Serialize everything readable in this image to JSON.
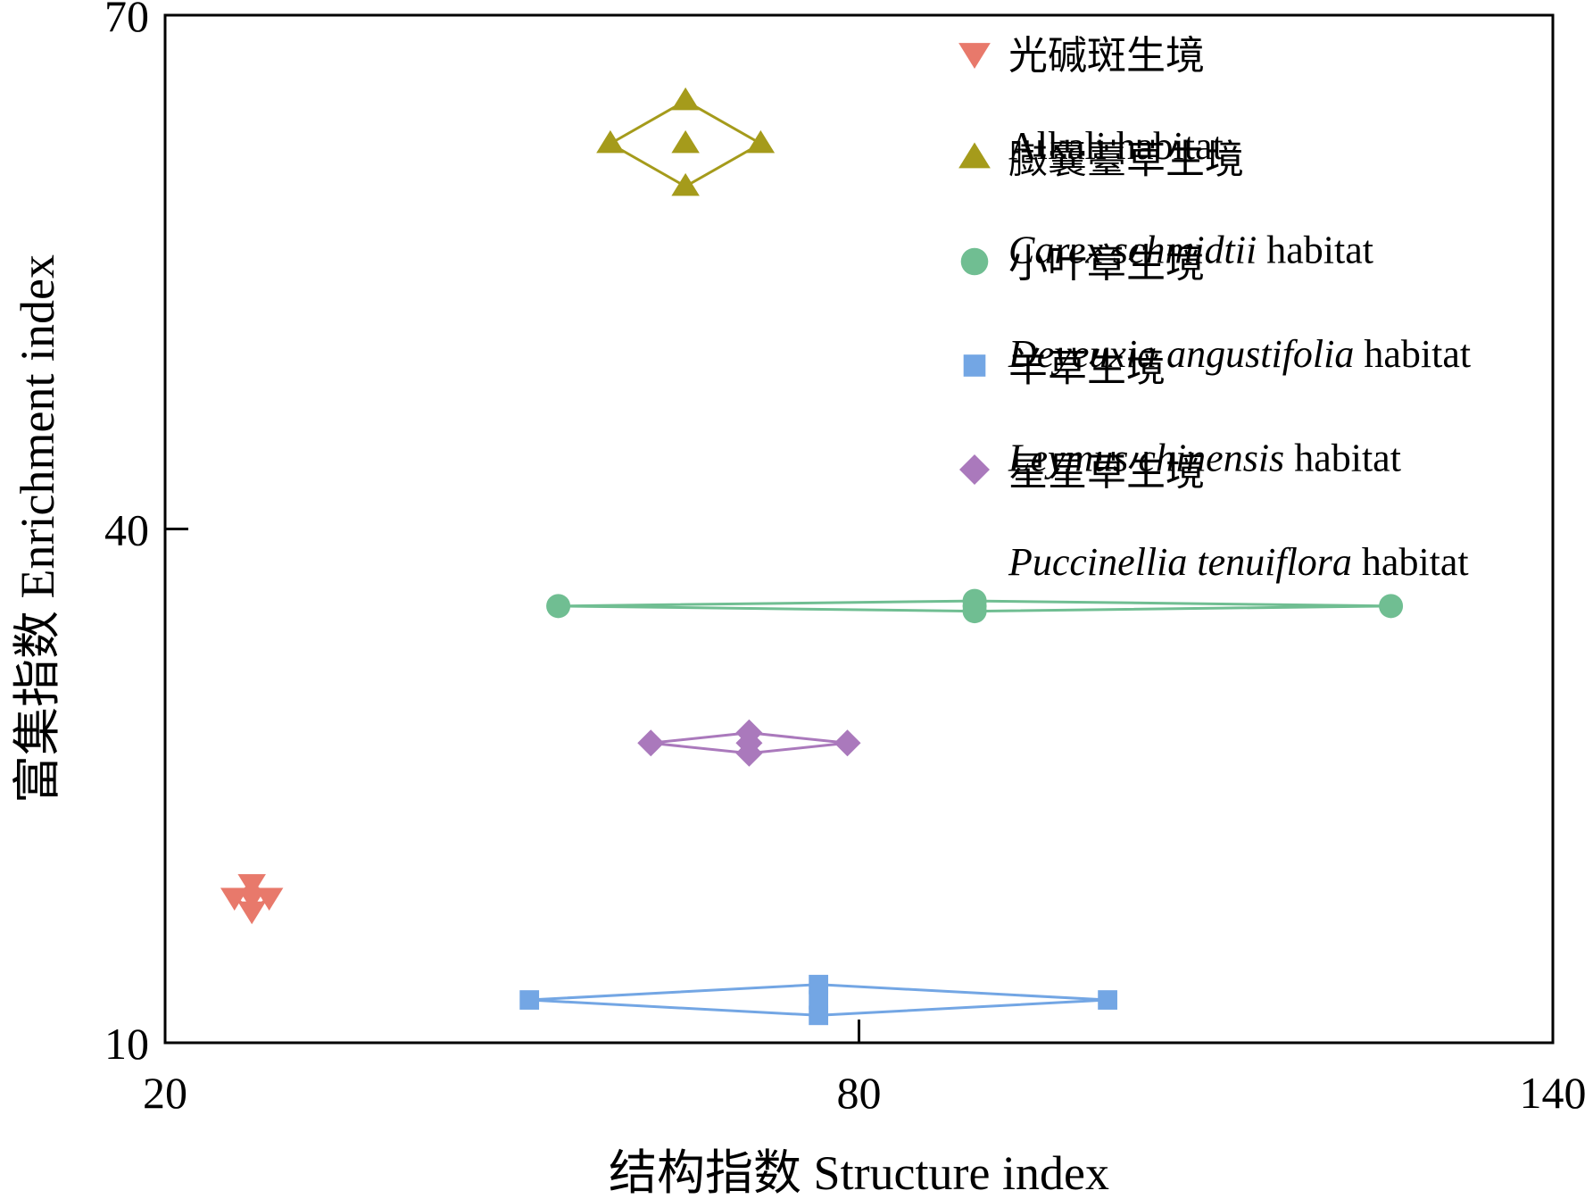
{
  "chart_data": {
    "type": "scatter",
    "xlabel": "结构指数 Structure index",
    "ylabel": "富集指数 Enrichment index",
    "xlim": [
      20,
      140
    ],
    "ylim": [
      10,
      70
    ],
    "x_ticks": [
      {
        "value": 20,
        "label": "20"
      },
      {
        "value": 80,
        "label": "80"
      },
      {
        "value": 140,
        "label": "140"
      }
    ],
    "y_ticks": [
      {
        "value": 10,
        "label": "10"
      },
      {
        "value": 40,
        "label": "40"
      },
      {
        "value": 70,
        "label": "70"
      }
    ],
    "grid": false,
    "legend_position": "top-right",
    "series": [
      {
        "id": "alkali",
        "name_cn": "光碱斑生境",
        "name_parts": [
          {
            "text": "Alkali habitat",
            "italic": false
          }
        ],
        "color": "#E8796B",
        "marker": "triangle-down",
        "center": {
          "x": 27.5,
          "y": 18.5
        },
        "x_range": [
          26.0,
          29.0
        ],
        "y_range": [
          17.7,
          19.3
        ]
      },
      {
        "id": "carex",
        "name_cn": "臌囊薹草生境",
        "name_parts": [
          {
            "text": "Carex schmidtii",
            "italic": true
          },
          {
            "text": " habitat",
            "italic": false
          }
        ],
        "color": "#A59B1B",
        "marker": "triangle-up",
        "center": {
          "x": 65.0,
          "y": 62.5
        },
        "x_range": [
          58.5,
          71.5
        ],
        "y_range": [
          60.0,
          65.0
        ]
      },
      {
        "id": "deyeuxia",
        "name_cn": "小叶章生境",
        "name_parts": [
          {
            "text": "Deyeuxia angustifolia",
            "italic": true
          },
          {
            "text": " habitat",
            "italic": false
          }
        ],
        "color": "#70BE92",
        "marker": "circle",
        "center": {
          "x": 90.0,
          "y": 35.5
        },
        "x_range": [
          54.0,
          126.0
        ],
        "y_range": [
          35.2,
          35.8
        ]
      },
      {
        "id": "leymus",
        "name_cn": "羊草生境",
        "name_parts": [
          {
            "text": "Leymus chinensis",
            "italic": true
          },
          {
            "text": " habitat",
            "italic": false
          }
        ],
        "color": "#73A6E4",
        "marker": "square",
        "center": {
          "x": 76.5,
          "y": 12.5
        },
        "x_range": [
          51.5,
          101.5
        ],
        "y_range": [
          11.6,
          13.4
        ]
      },
      {
        "id": "puccinellia",
        "name_cn": "星星草生境",
        "name_parts": [
          {
            "text": "Puccinellia tenuiflora",
            "italic": true
          },
          {
            "text": " habitat",
            "italic": false
          }
        ],
        "color": "#AA79BC",
        "marker": "diamond",
        "center": {
          "x": 70.5,
          "y": 27.5
        },
        "x_range": [
          62.0,
          79.0
        ],
        "y_range": [
          26.9,
          28.1
        ]
      }
    ]
  }
}
